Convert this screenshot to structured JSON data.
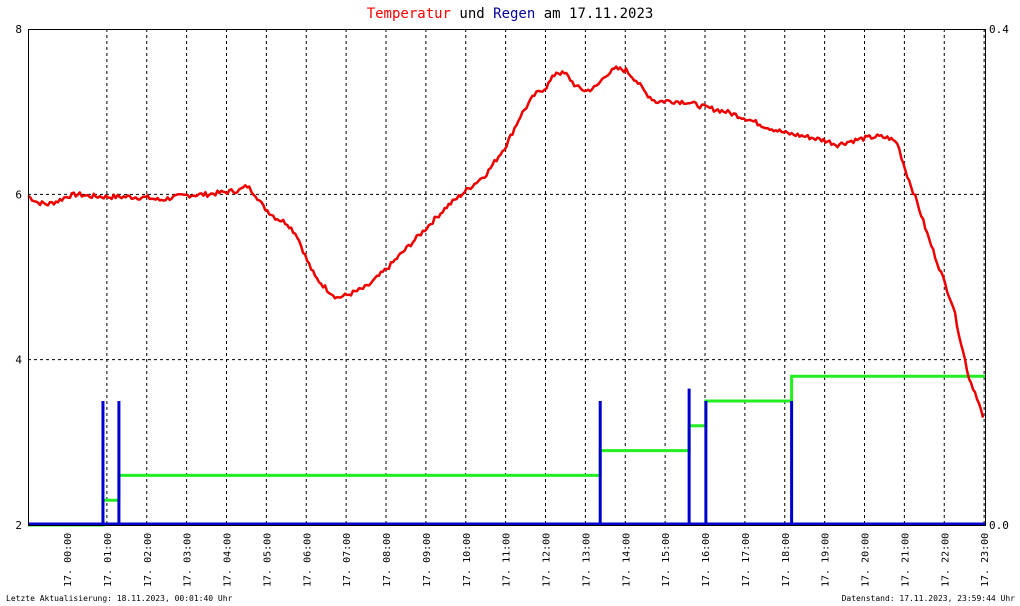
{
  "title": {
    "part1": "Temperatur",
    "part2": " und ",
    "part3": "Regen",
    "part4": " am 17.11.2023"
  },
  "colors": {
    "temperature": "#ee0000",
    "rain_bars": "#0000cc",
    "rain_sum": "#22ee22",
    "title_temp": "#ff0000",
    "title_rain": "#000099",
    "grid": "#000000"
  },
  "footer": {
    "left": "Letzte Aktualisierung: 18.11.2023, 00:01:40 Uhr",
    "right": "Datenstand: 17.11.2023, 23:59:44 Uhr"
  },
  "chart_data": {
    "type": "line",
    "x_range_hours": [
      0,
      24
    ],
    "x_tick_labels": [
      "17. 00:00",
      "17. 01:00",
      "17. 02:00",
      "17. 03:00",
      "17. 04:00",
      "17. 05:00",
      "17. 06:00",
      "17. 07:00",
      "17. 08:00",
      "17. 09:00",
      "17. 10:00",
      "17. 11:00",
      "17. 12:00",
      "17. 13:00",
      "17. 14:00",
      "17. 15:00",
      "17. 16:00",
      "17. 17:00",
      "17. 18:00",
      "17. 19:00",
      "17. 20:00",
      "17. 21:00",
      "17. 22:00",
      "17. 23:00"
    ],
    "y_left": {
      "range": [
        2,
        8
      ],
      "ticks": [
        2,
        4,
        6,
        8
      ],
      "tick_labels": [
        "2",
        "4",
        "6",
        "8"
      ]
    },
    "y_right": {
      "range": [
        0.0,
        0.4
      ],
      "ticks": [
        0.0,
        0.4
      ],
      "tick_labels": [
        "0.0",
        "0.4"
      ]
    },
    "grid": true,
    "series": [
      {
        "kind": "temperature",
        "axis": "left",
        "points": [
          [
            0,
            5.98
          ],
          [
            0.25,
            5.9
          ],
          [
            0.5,
            5.88
          ],
          [
            0.75,
            5.92
          ],
          [
            1.0,
            5.98
          ],
          [
            1.25,
            6.0
          ],
          [
            1.5,
            5.98
          ],
          [
            2.0,
            5.97
          ],
          [
            2.5,
            5.97
          ],
          [
            3.0,
            5.96
          ],
          [
            3.3,
            5.93
          ],
          [
            3.6,
            5.96
          ],
          [
            4.0,
            5.99
          ],
          [
            4.5,
            6.0
          ],
          [
            5.0,
            6.03
          ],
          [
            5.3,
            6.05
          ],
          [
            5.5,
            6.1
          ],
          [
            5.7,
            6.0
          ],
          [
            5.9,
            5.85
          ],
          [
            6.2,
            5.72
          ],
          [
            6.5,
            5.65
          ],
          [
            6.75,
            5.5
          ],
          [
            7.0,
            5.2
          ],
          [
            7.2,
            5.0
          ],
          [
            7.5,
            4.85
          ],
          [
            7.75,
            4.75
          ],
          [
            8.0,
            4.78
          ],
          [
            8.5,
            4.88
          ],
          [
            9.0,
            5.1
          ],
          [
            9.5,
            5.35
          ],
          [
            10.0,
            5.6
          ],
          [
            10.5,
            5.85
          ],
          [
            11.0,
            6.05
          ],
          [
            11.5,
            6.25
          ],
          [
            12.0,
            6.6
          ],
          [
            12.35,
            6.95
          ],
          [
            12.7,
            7.2
          ],
          [
            13.0,
            7.3
          ],
          [
            13.25,
            7.48
          ],
          [
            13.5,
            7.45
          ],
          [
            13.75,
            7.3
          ],
          [
            14.0,
            7.25
          ],
          [
            14.25,
            7.3
          ],
          [
            14.5,
            7.45
          ],
          [
            14.75,
            7.52
          ],
          [
            15.0,
            7.5
          ],
          [
            15.25,
            7.38
          ],
          [
            15.5,
            7.22
          ],
          [
            15.75,
            7.12
          ],
          [
            16.0,
            7.13
          ],
          [
            16.5,
            7.12
          ],
          [
            17.0,
            7.05
          ],
          [
            17.5,
            7.0
          ],
          [
            18.0,
            6.92
          ],
          [
            18.5,
            6.82
          ],
          [
            19.0,
            6.74
          ],
          [
            19.5,
            6.7
          ],
          [
            20.0,
            6.65
          ],
          [
            20.3,
            6.6
          ],
          [
            20.6,
            6.64
          ],
          [
            21.0,
            6.68
          ],
          [
            21.3,
            6.7
          ],
          [
            21.6,
            6.68
          ],
          [
            21.8,
            6.62
          ],
          [
            22.0,
            6.3
          ],
          [
            22.3,
            5.9
          ],
          [
            22.6,
            5.45
          ],
          [
            22.9,
            5.05
          ],
          [
            23.2,
            4.65
          ],
          [
            23.4,
            4.2
          ],
          [
            23.6,
            3.78
          ],
          [
            23.8,
            3.55
          ],
          [
            23.95,
            3.3
          ]
        ]
      },
      {
        "kind": "rain_events",
        "axis": "right",
        "points": [
          [
            1.88,
            0.1
          ],
          [
            2.28,
            0.1
          ],
          [
            14.35,
            0.1
          ],
          [
            16.58,
            0.11
          ],
          [
            17.0,
            0.1
          ],
          [
            19.15,
            0.1
          ]
        ]
      },
      {
        "kind": "rain_cumulative",
        "axis": "right",
        "points": [
          [
            0,
            0.0
          ],
          [
            1.88,
            0.0
          ],
          [
            1.88,
            0.02
          ],
          [
            2.28,
            0.02
          ],
          [
            2.28,
            0.04
          ],
          [
            14.35,
            0.04
          ],
          [
            14.35,
            0.06
          ],
          [
            16.58,
            0.06
          ],
          [
            16.58,
            0.08
          ],
          [
            17.0,
            0.08
          ],
          [
            17.0,
            0.1
          ],
          [
            19.15,
            0.1
          ],
          [
            19.15,
            0.12
          ],
          [
            24,
            0.12
          ]
        ]
      }
    ]
  }
}
